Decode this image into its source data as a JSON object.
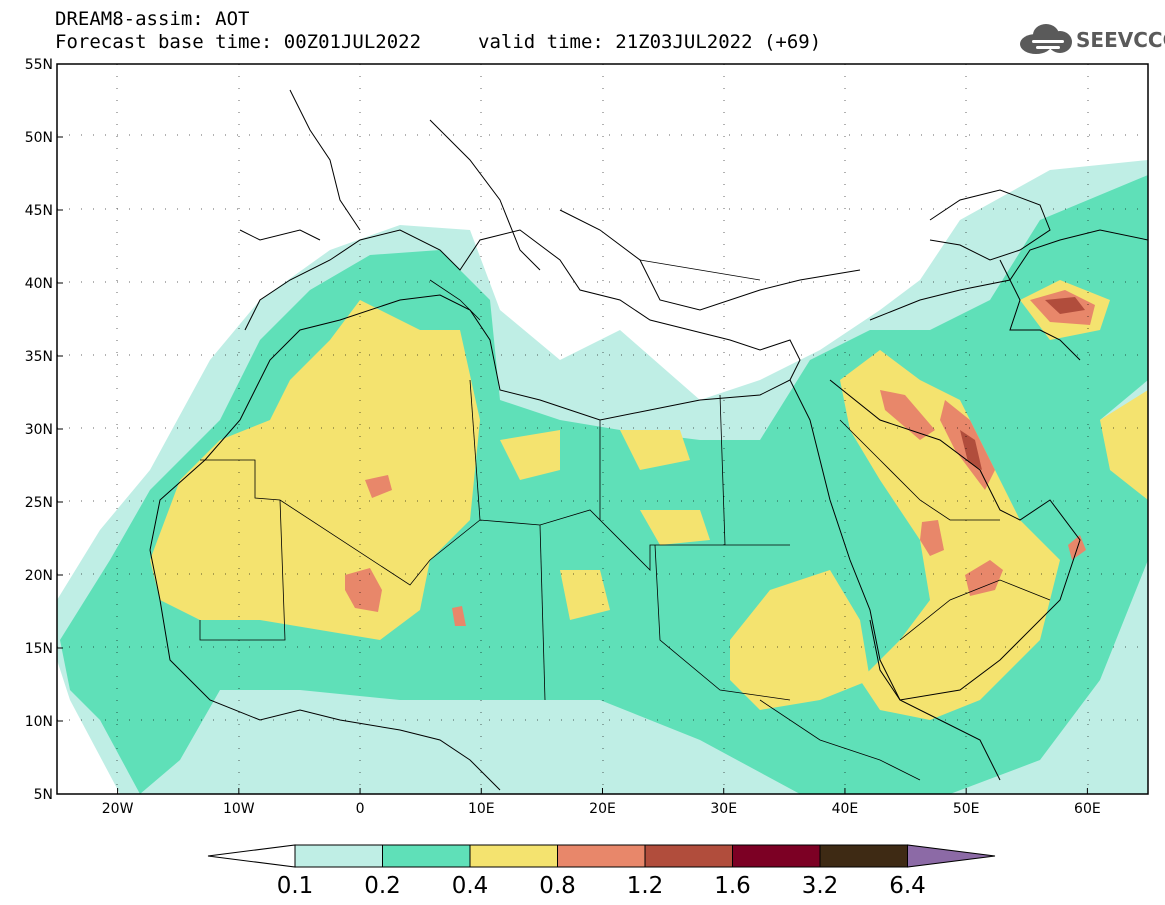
{
  "header": {
    "line1": "DREAM8-assim: AOT",
    "line2_base": "Forecast base time: 00Z01JUL2022",
    "line2_valid": "valid time: 21Z03JUL2022 (+69)",
    "logo_text": "SEEVCCC"
  },
  "map": {
    "projection": "lat-lon",
    "lon_range": [
      -25,
      65
    ],
    "lat_range": [
      5,
      55
    ],
    "lat_ticks": [
      "5N",
      "10N",
      "15N",
      "20N",
      "25N",
      "30N",
      "35N",
      "40N",
      "45N",
      "50N",
      "55N"
    ],
    "lon_ticks": [
      "20W",
      "10W",
      "0",
      "10E",
      "20E",
      "30E",
      "40E",
      "50E",
      "60E"
    ],
    "grid": "dotted"
  },
  "colorbar": {
    "levels": [
      "0.1",
      "0.2",
      "0.4",
      "0.8",
      "1.2",
      "1.6",
      "3.2",
      "6.4"
    ],
    "colors": [
      "#ffffff",
      "#bfeee5",
      "#5fe0b8",
      "#f4e36f",
      "#e8876a",
      "#b14d3c",
      "#7c0024",
      "#3e2a14",
      "#8c6aa6"
    ]
  }
}
